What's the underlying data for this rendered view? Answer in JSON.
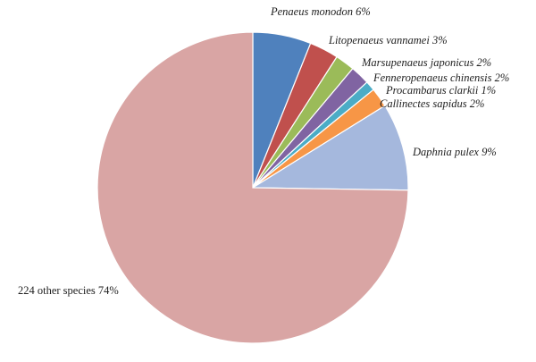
{
  "chart_data": {
    "type": "pie",
    "categories": [
      "Penaeus monodon",
      "Litopenaeus vannamei",
      "Marsupenaeus japonicus",
      "Fenneropenaeus chinensis",
      "Procambarus clarkii",
      "Callinectes sapidus",
      "Daphnia pulex",
      "224 other species"
    ],
    "values": [
      6,
      3,
      2,
      2,
      1,
      2,
      9,
      74
    ],
    "value_labels": [
      "6%",
      "3%",
      "2%",
      "2%",
      "1%",
      "2%",
      "9%",
      "74%"
    ],
    "colors": [
      "#4f81bd",
      "#c0504d",
      "#9bbb59",
      "#8064a2",
      "#4bacc6",
      "#f79646",
      "#a5b8dd",
      "#d9a5a4"
    ]
  }
}
